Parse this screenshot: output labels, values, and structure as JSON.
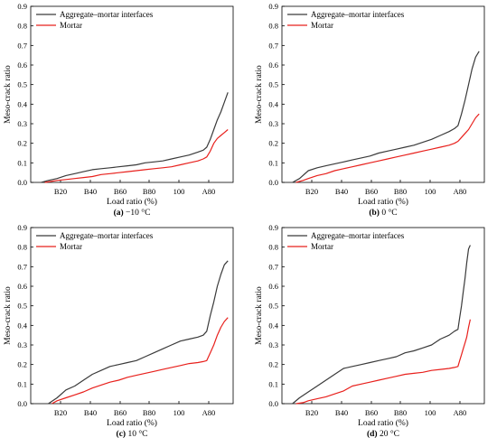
{
  "colors": {
    "interfaces": "#3a3a3a",
    "mortar": "#e8201c",
    "axis": "#000000",
    "background": "#ffffff"
  },
  "chart_data": [
    {
      "type": "line",
      "caption_letter": "(a)",
      "caption_text": " −10 °C",
      "xlabel": "Load ratio (%)",
      "ylabel": "Meso-crack ratio",
      "xlim": [
        0,
        115
      ],
      "ylim": [
        0,
        0.9
      ],
      "xticks": [
        "B20",
        "B40",
        "B60",
        "B80",
        "100",
        "A80"
      ],
      "yticks": [
        "0.0",
        "0.1",
        "0.2",
        "0.3",
        "0.4",
        "0.5",
        "0.6",
        "0.7",
        "0.8",
        "0.9"
      ],
      "grid": false,
      "legend_position": "top-left",
      "series": [
        {
          "name": "Aggregate–mortar interfaces",
          "color": "#3a3a3a",
          "x": [
            6,
            10,
            15,
            20,
            25,
            30,
            35,
            40,
            45,
            50,
            55,
            60,
            65,
            70,
            75,
            80,
            85,
            90,
            95,
            98,
            100,
            102,
            104,
            106,
            108,
            110,
            112
          ],
          "y": [
            0,
            0.01,
            0.02,
            0.035,
            0.045,
            0.055,
            0.065,
            0.07,
            0.075,
            0.08,
            0.085,
            0.09,
            0.1,
            0.105,
            0.11,
            0.12,
            0.13,
            0.14,
            0.155,
            0.165,
            0.18,
            0.22,
            0.27,
            0.32,
            0.36,
            0.41,
            0.46
          ]
        },
        {
          "name": "Mortar",
          "color": "#e8201c",
          "x": [
            8,
            15,
            20,
            25,
            30,
            35,
            40,
            45,
            50,
            55,
            60,
            65,
            70,
            75,
            80,
            85,
            90,
            95,
            98,
            100,
            102,
            104,
            106,
            108,
            110,
            112
          ],
          "y": [
            0,
            0.01,
            0.015,
            0.02,
            0.025,
            0.03,
            0.04,
            0.045,
            0.05,
            0.055,
            0.06,
            0.065,
            0.07,
            0.075,
            0.08,
            0.09,
            0.1,
            0.11,
            0.12,
            0.13,
            0.16,
            0.2,
            0.225,
            0.24,
            0.255,
            0.27
          ]
        }
      ]
    },
    {
      "type": "line",
      "caption_letter": "(b)",
      "caption_text": " 0 °C",
      "xlabel": "Load ratio (%)",
      "ylabel": "Meso-crack ratio",
      "xlim": [
        0,
        115
      ],
      "ylim": [
        0,
        0.9
      ],
      "xticks": [
        "B20",
        "B40",
        "B60",
        "B80",
        "100",
        "A80"
      ],
      "yticks": [
        "0.0",
        "0.1",
        "0.2",
        "0.3",
        "0.4",
        "0.5",
        "0.6",
        "0.7",
        "0.8",
        "0.9"
      ],
      "grid": false,
      "legend_position": "top-left",
      "series": [
        {
          "name": "Aggregate–mortar interfaces",
          "color": "#3a3a3a",
          "x": [
            6,
            10,
            15,
            20,
            25,
            30,
            35,
            40,
            45,
            50,
            55,
            60,
            65,
            70,
            75,
            80,
            85,
            90,
            95,
            98,
            100,
            102,
            104,
            106,
            108,
            110,
            112
          ],
          "y": [
            0,
            0.02,
            0.06,
            0.075,
            0.085,
            0.095,
            0.105,
            0.115,
            0.125,
            0.135,
            0.15,
            0.16,
            0.17,
            0.18,
            0.19,
            0.205,
            0.22,
            0.24,
            0.26,
            0.275,
            0.29,
            0.35,
            0.42,
            0.5,
            0.58,
            0.64,
            0.67
          ]
        },
        {
          "name": "Mortar",
          "color": "#e8201c",
          "x": [
            8,
            12,
            15,
            20,
            25,
            30,
            35,
            40,
            45,
            50,
            55,
            60,
            65,
            70,
            75,
            80,
            85,
            90,
            95,
            98,
            100,
            102,
            104,
            106,
            108,
            110,
            112
          ],
          "y": [
            0,
            0.01,
            0.02,
            0.035,
            0.045,
            0.06,
            0.07,
            0.08,
            0.09,
            0.1,
            0.11,
            0.12,
            0.13,
            0.14,
            0.15,
            0.16,
            0.17,
            0.18,
            0.19,
            0.2,
            0.21,
            0.23,
            0.25,
            0.27,
            0.3,
            0.33,
            0.35
          ]
        }
      ]
    },
    {
      "type": "line",
      "caption_letter": "(c)",
      "caption_text": " 10 °C",
      "xlabel": "Load ratio (%)",
      "ylabel": "Meso-crack ratio",
      "xlim": [
        0,
        115
      ],
      "ylim": [
        0,
        0.9
      ],
      "xticks": [
        "B20",
        "B40",
        "B60",
        "B80",
        "100",
        "A80"
      ],
      "yticks": [
        "0.0",
        "0.1",
        "0.2",
        "0.3",
        "0.4",
        "0.5",
        "0.6",
        "0.7",
        "0.8",
        "0.9"
      ],
      "grid": false,
      "legend_position": "top-left",
      "series": [
        {
          "name": "Aggregate–mortar interfaces",
          "color": "#3a3a3a",
          "x": [
            10,
            15,
            20,
            25,
            30,
            35,
            40,
            45,
            50,
            55,
            60,
            65,
            70,
            75,
            80,
            85,
            90,
            95,
            98,
            100,
            102,
            104,
            106,
            108,
            110,
            112
          ],
          "y": [
            0,
            0.03,
            0.07,
            0.09,
            0.12,
            0.15,
            0.17,
            0.19,
            0.2,
            0.21,
            0.22,
            0.24,
            0.26,
            0.28,
            0.3,
            0.32,
            0.33,
            0.34,
            0.35,
            0.37,
            0.45,
            0.52,
            0.6,
            0.66,
            0.71,
            0.73
          ]
        },
        {
          "name": "Mortar",
          "color": "#e8201c",
          "x": [
            12,
            15,
            20,
            25,
            30,
            35,
            40,
            45,
            50,
            55,
            60,
            65,
            70,
            75,
            80,
            85,
            90,
            95,
            98,
            100,
            102,
            104,
            106,
            108,
            110,
            112
          ],
          "y": [
            0,
            0.015,
            0.03,
            0.045,
            0.06,
            0.08,
            0.095,
            0.11,
            0.12,
            0.135,
            0.145,
            0.155,
            0.165,
            0.175,
            0.185,
            0.195,
            0.205,
            0.21,
            0.215,
            0.22,
            0.26,
            0.3,
            0.35,
            0.39,
            0.42,
            0.44
          ]
        }
      ]
    },
    {
      "type": "line",
      "caption_letter": "(d)",
      "caption_text": " 20 °C",
      "xlabel": "Load ratio (%)",
      "ylabel": "Meso-crack ratio",
      "xlim": [
        0,
        115
      ],
      "ylim": [
        0,
        0.9
      ],
      "xticks": [
        "B20",
        "B40",
        "B60",
        "B80",
        "100",
        "A80"
      ],
      "yticks": [
        "0.0",
        "0.1",
        "0.2",
        "0.3",
        "0.4",
        "0.5",
        "0.6",
        "0.7",
        "0.8",
        "0.9"
      ],
      "grid": false,
      "legend_position": "top-left",
      "series": [
        {
          "name": "Aggregate–mortar interfaces",
          "color": "#3a3a3a",
          "x": [
            6,
            10,
            15,
            20,
            25,
            30,
            35,
            40,
            45,
            50,
            55,
            60,
            65,
            70,
            75,
            80,
            85,
            90,
            95,
            98,
            100,
            101,
            102,
            103,
            104,
            105,
            106,
            107
          ],
          "y": [
            0,
            0.03,
            0.06,
            0.09,
            0.12,
            0.15,
            0.18,
            0.19,
            0.2,
            0.21,
            0.22,
            0.23,
            0.24,
            0.26,
            0.27,
            0.285,
            0.3,
            0.33,
            0.35,
            0.37,
            0.38,
            0.44,
            0.5,
            0.57,
            0.64,
            0.72,
            0.79,
            0.81
          ]
        },
        {
          "name": "Mortar",
          "color": "#e8201c",
          "x": [
            8,
            12,
            15,
            20,
            25,
            30,
            35,
            40,
            45,
            50,
            55,
            60,
            65,
            70,
            75,
            80,
            85,
            90,
            95,
            98,
            100,
            101,
            102,
            103,
            104,
            105,
            106,
            107
          ],
          "y": [
            0,
            0.005,
            0.015,
            0.025,
            0.035,
            0.05,
            0.065,
            0.09,
            0.1,
            0.11,
            0.12,
            0.13,
            0.14,
            0.15,
            0.155,
            0.16,
            0.17,
            0.175,
            0.18,
            0.185,
            0.19,
            0.22,
            0.25,
            0.28,
            0.31,
            0.34,
            0.39,
            0.43
          ]
        }
      ]
    }
  ]
}
